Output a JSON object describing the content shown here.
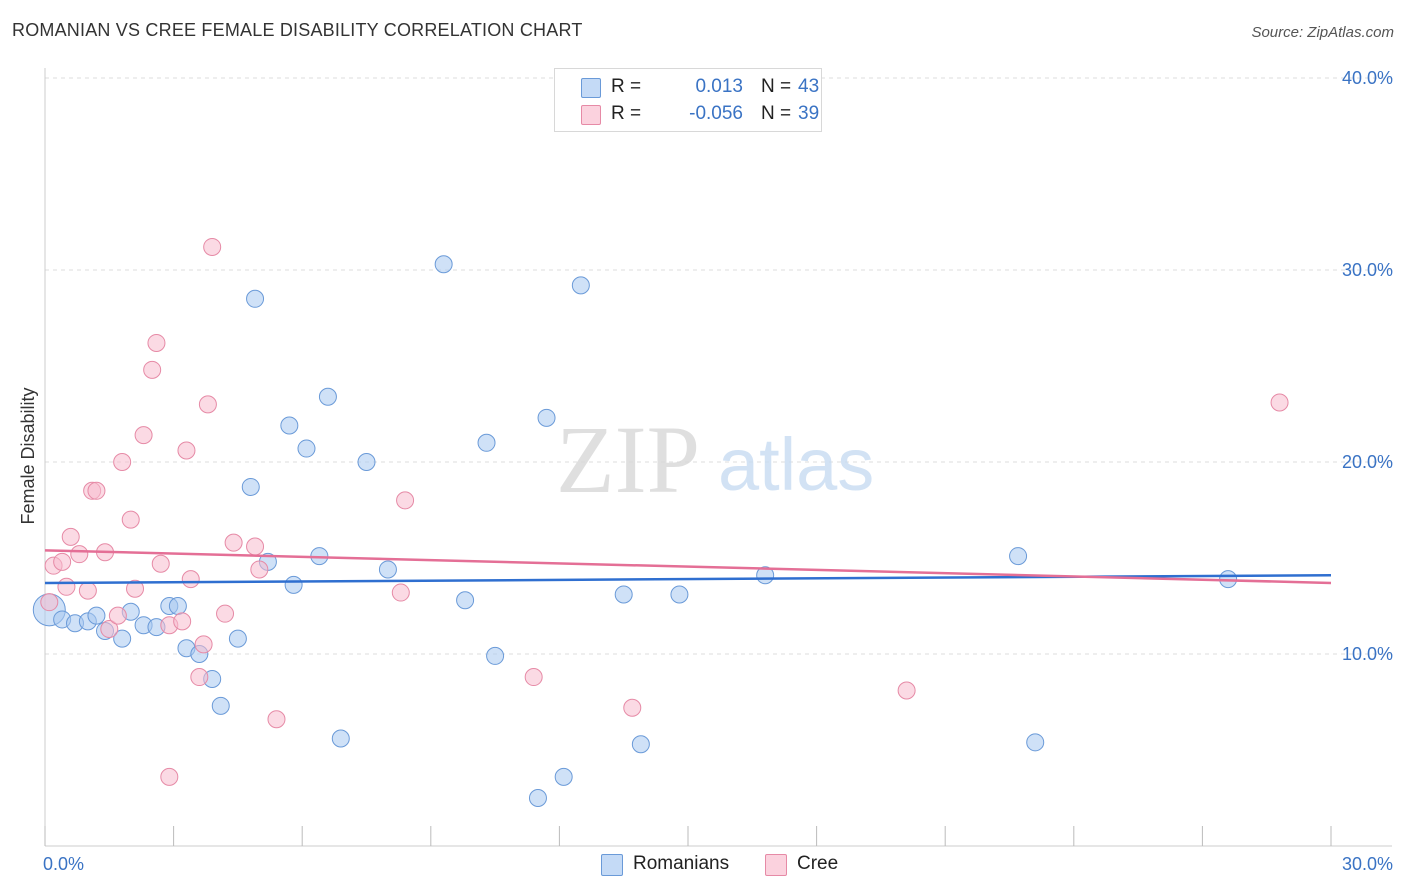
{
  "header": {
    "title": "ROMANIAN VS CREE FEMALE DISABILITY CORRELATION CHART",
    "source": "Source: ZipAtlas.com"
  },
  "watermark": {
    "zip": "ZIP",
    "atlas": "atlas"
  },
  "stats": [
    {
      "r_label": "R =",
      "r_value": "0.013",
      "n_label": "N =",
      "n_value": "43",
      "color": "#a8c8f0",
      "stroke": "#6a9ad8"
    },
    {
      "r_label": "R =",
      "r_value": "-0.056",
      "n_label": "N =",
      "n_value": "39",
      "color": "#f8bccd",
      "stroke": "#e68aa6"
    }
  ],
  "legend": [
    {
      "label": "Romanians",
      "color": "#a8c8f0",
      "stroke": "#6a9ad8"
    },
    {
      "label": "Cree",
      "color": "#f8bccd",
      "stroke": "#e68aa6"
    }
  ],
  "colors": {
    "blue_fill": "#a8c8f0",
    "blue_stroke": "#6a9ad8",
    "blue_line": "#2f6fd0",
    "pink_fill": "#f8bccd",
    "pink_stroke": "#e68aa6",
    "pink_line": "#e46f96",
    "tick_text": "#3a73c4",
    "grid": "#dddddd"
  },
  "chart_data": {
    "type": "scatter",
    "title": "ROMANIAN VS CREE FEMALE DISABILITY CORRELATION CHART",
    "xlabel": "",
    "ylabel": "Female Disability",
    "xlim": [
      0,
      30
    ],
    "ylim": [
      0,
      40
    ],
    "x_tick_labels": [
      {
        "value": 0,
        "label": "0.0%"
      },
      {
        "value": 30,
        "label": "30.0%"
      }
    ],
    "y_tick_labels": [
      {
        "value": 10,
        "label": "10.0%"
      },
      {
        "value": 20,
        "label": "20.0%"
      },
      {
        "value": 30,
        "label": "30.0%"
      },
      {
        "value": 40,
        "label": "40.0%"
      }
    ],
    "x_minor_ticks": [
      0,
      3,
      6,
      9,
      12,
      15,
      18,
      21,
      24,
      27,
      30
    ],
    "grid": true,
    "legend_position": "bottom-center",
    "series": [
      {
        "name": "Romanians",
        "color": "#a8c8f0",
        "trend": [
          [
            0,
            13.7
          ],
          [
            30,
            14.1
          ]
        ],
        "points": [
          [
            0.1,
            12.3
          ],
          [
            0.4,
            11.8
          ],
          [
            0.7,
            11.6
          ],
          [
            1.0,
            11.7
          ],
          [
            1.2,
            12.0
          ],
          [
            1.4,
            11.2
          ],
          [
            1.8,
            10.8
          ],
          [
            2.0,
            12.2
          ],
          [
            2.3,
            11.5
          ],
          [
            2.6,
            11.4
          ],
          [
            2.9,
            12.5
          ],
          [
            3.1,
            12.5
          ],
          [
            3.3,
            10.3
          ],
          [
            3.6,
            10.0
          ],
          [
            3.9,
            8.7
          ],
          [
            4.1,
            7.3
          ],
          [
            4.5,
            10.8
          ],
          [
            4.8,
            18.7
          ],
          [
            4.9,
            28.5
          ],
          [
            5.2,
            14.8
          ],
          [
            5.7,
            21.9
          ],
          [
            5.8,
            13.6
          ],
          [
            6.1,
            20.7
          ],
          [
            6.4,
            15.1
          ],
          [
            6.6,
            23.4
          ],
          [
            6.9,
            5.6
          ],
          [
            7.5,
            20.0
          ],
          [
            8.0,
            14.4
          ],
          [
            9.3,
            30.3
          ],
          [
            9.8,
            12.8
          ],
          [
            10.3,
            21.0
          ],
          [
            10.5,
            9.9
          ],
          [
            11.5,
            2.5
          ],
          [
            11.7,
            22.3
          ],
          [
            12.1,
            3.6
          ],
          [
            12.5,
            29.2
          ],
          [
            13.5,
            13.1
          ],
          [
            13.9,
            5.3
          ],
          [
            14.8,
            13.1
          ],
          [
            16.8,
            14.1
          ],
          [
            22.7,
            15.1
          ],
          [
            23.1,
            5.4
          ],
          [
            27.6,
            13.9
          ]
        ]
      },
      {
        "name": "Cree",
        "color": "#f8bccd",
        "trend": [
          [
            0,
            15.4
          ],
          [
            30,
            13.7
          ]
        ],
        "points": [
          [
            0.1,
            12.7
          ],
          [
            0.2,
            14.6
          ],
          [
            0.4,
            14.8
          ],
          [
            0.5,
            13.5
          ],
          [
            0.6,
            16.1
          ],
          [
            0.8,
            15.2
          ],
          [
            1.0,
            13.3
          ],
          [
            1.1,
            18.5
          ],
          [
            1.2,
            18.5
          ],
          [
            1.4,
            15.3
          ],
          [
            1.5,
            11.3
          ],
          [
            1.7,
            12.0
          ],
          [
            1.8,
            20.0
          ],
          [
            2.0,
            17.0
          ],
          [
            2.1,
            13.4
          ],
          [
            2.3,
            21.4
          ],
          [
            2.5,
            24.8
          ],
          [
            2.6,
            26.2
          ],
          [
            2.7,
            14.7
          ],
          [
            2.9,
            11.5
          ],
          [
            2.9,
            3.6
          ],
          [
            3.2,
            11.7
          ],
          [
            3.3,
            20.6
          ],
          [
            3.4,
            13.9
          ],
          [
            3.6,
            8.8
          ],
          [
            3.7,
            10.5
          ],
          [
            3.8,
            23.0
          ],
          [
            3.9,
            31.2
          ],
          [
            4.2,
            12.1
          ],
          [
            4.4,
            15.8
          ],
          [
            4.9,
            15.6
          ],
          [
            5.0,
            14.4
          ],
          [
            5.4,
            6.6
          ],
          [
            8.3,
            13.2
          ],
          [
            8.4,
            18.0
          ],
          [
            11.4,
            8.8
          ],
          [
            13.7,
            7.2
          ],
          [
            20.1,
            8.1
          ],
          [
            28.8,
            23.1
          ]
        ]
      }
    ]
  }
}
